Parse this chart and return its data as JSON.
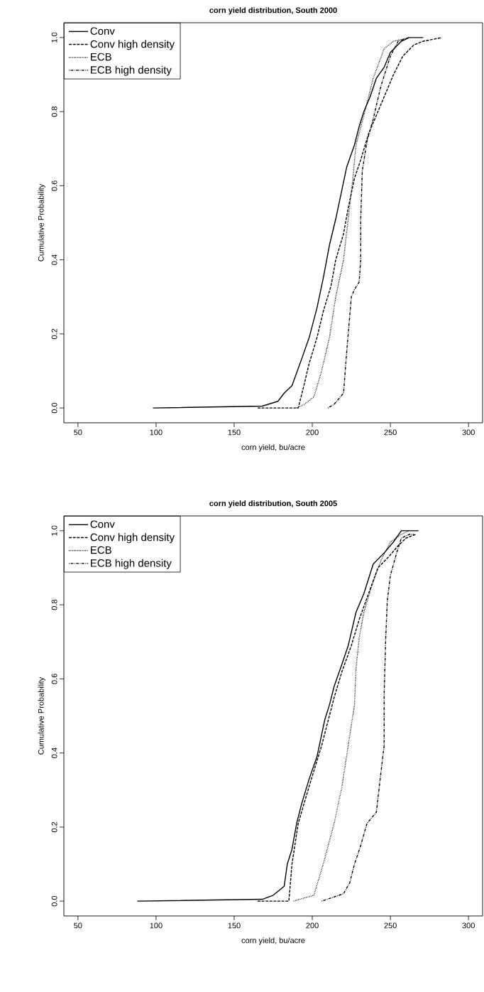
{
  "chart_data": [
    {
      "type": "line",
      "title": "corn yield distribution, South 2000",
      "xlabel": "corn yield, bu/acre",
      "ylabel": "Cumulative Probability",
      "xlim": [
        41,
        309
      ],
      "ylim": [
        -0.04,
        1.04
      ],
      "xticks": [
        50,
        100,
        150,
        200,
        250,
        300
      ],
      "yticks": [
        {
          "value": 0,
          "label": "0.0"
        },
        {
          "value": 0.2,
          "label": "0.2"
        },
        {
          "value": 0.4,
          "label": "0.4"
        },
        {
          "value": 0.6,
          "label": "0.6"
        },
        {
          "value": 0.8,
          "label": "0.8"
        },
        {
          "value": 1,
          "label": "1.0"
        }
      ],
      "legend": "top left",
      "grid": false,
      "series": [
        {
          "name": "Conv",
          "color": "#000000",
          "line_style": "solid",
          "x": [
            98,
            168,
            178,
            182,
            187,
            193,
            198,
            203,
            207,
            211,
            215,
            219,
            222,
            227,
            230,
            233,
            237,
            241,
            246,
            250,
            257,
            262,
            271
          ],
          "values": [
            0,
            0.005,
            0.018,
            0.04,
            0.06,
            0.13,
            0.19,
            0.27,
            0.35,
            0.44,
            0.51,
            0.59,
            0.65,
            0.71,
            0.76,
            0.8,
            0.84,
            0.89,
            0.92,
            0.96,
            0.99,
            1.0,
            1.0
          ]
        },
        {
          "name": "Conv high density",
          "color": "#000000",
          "line_style": "dashed",
          "x": [
            165,
            191,
            194,
            198,
            203,
            207,
            212,
            215,
            220,
            223,
            227,
            231,
            236,
            241,
            246,
            252,
            258,
            265,
            271,
            283
          ],
          "values": [
            0,
            0,
            0.05,
            0.12,
            0.19,
            0.26,
            0.33,
            0.4,
            0.47,
            0.54,
            0.62,
            0.67,
            0.74,
            0.79,
            0.84,
            0.9,
            0.95,
            0.98,
            0.99,
            1.0
          ]
        },
        {
          "name": "ECB",
          "color": "#000000",
          "line_style": "dotted",
          "x": [
            190,
            195,
            201,
            206,
            211,
            215,
            220,
            223,
            226,
            228,
            233,
            239,
            246,
            252,
            262
          ],
          "values": [
            0,
            0.01,
            0.03,
            0.1,
            0.19,
            0.3,
            0.4,
            0.51,
            0.62,
            0.71,
            0.79,
            0.89,
            0.97,
            0.99,
            1.0
          ]
        },
        {
          "name": "ECB high density",
          "color": "#000000",
          "line_style": "dashdot",
          "x": [
            210,
            214,
            220,
            222,
            225,
            227,
            230,
            231,
            231,
            232,
            235,
            239,
            244,
            250,
            255,
            262
          ],
          "values": [
            0,
            0.01,
            0.04,
            0.15,
            0.3,
            0.32,
            0.34,
            0.4,
            0.51,
            0.64,
            0.72,
            0.78,
            0.87,
            0.95,
            0.99,
            1.0
          ]
        }
      ]
    },
    {
      "type": "line",
      "title": "corn yield distribution, South 2005",
      "xlabel": "corn yield, bu/acre",
      "ylabel": "Cumulative Probability",
      "xlim": [
        41,
        309
      ],
      "ylim": [
        -0.04,
        1.04
      ],
      "xticks": [
        50,
        100,
        150,
        200,
        250,
        300
      ],
      "yticks": [
        {
          "value": 0,
          "label": "0.0"
        },
        {
          "value": 0.2,
          "label": "0.2"
        },
        {
          "value": 0.4,
          "label": "0.4"
        },
        {
          "value": 0.6,
          "label": "0.6"
        },
        {
          "value": 0.8,
          "label": "0.8"
        },
        {
          "value": 1,
          "label": "1.0"
        }
      ],
      "legend": "top left",
      "grid": false,
      "series": [
        {
          "name": "Conv",
          "color": "#000000",
          "line_style": "solid",
          "x": [
            88,
            168,
            175,
            182,
            184,
            187,
            190,
            193,
            198,
            203,
            206,
            208,
            211,
            214,
            219,
            223,
            228,
            233,
            239,
            246,
            252,
            257,
            268
          ],
          "values": [
            0,
            0.005,
            0.016,
            0.04,
            0.1,
            0.14,
            0.21,
            0.26,
            0.33,
            0.39,
            0.45,
            0.49,
            0.53,
            0.58,
            0.64,
            0.69,
            0.78,
            0.83,
            0.91,
            0.94,
            0.97,
            1.0,
            1.0
          ]
        },
        {
          "name": "Conv high density",
          "color": "#000000",
          "line_style": "dashed",
          "x": [
            165,
            185,
            187,
            191,
            198,
            206,
            214,
            219,
            225,
            230,
            236,
            242,
            249,
            255,
            260,
            266
          ],
          "values": [
            0,
            0,
            0.1,
            0.21,
            0.31,
            0.42,
            0.55,
            0.62,
            0.69,
            0.76,
            0.83,
            0.9,
            0.93,
            0.96,
            0.98,
            0.99
          ]
        },
        {
          "name": "ECB",
          "color": "#000000",
          "line_style": "dotted",
          "x": [
            188,
            201,
            207,
            214,
            219,
            223,
            227,
            228,
            230,
            233,
            238,
            244,
            250,
            257,
            262
          ],
          "values": [
            0,
            0.016,
            0.1,
            0.21,
            0.31,
            0.42,
            0.53,
            0.63,
            0.71,
            0.78,
            0.85,
            0.92,
            0.97,
            0.99,
            1.0
          ]
        },
        {
          "name": "ECB high density",
          "color": "#000000",
          "line_style": "dashdot",
          "x": [
            206,
            220,
            224,
            227,
            231,
            235,
            241,
            244,
            246,
            246,
            247,
            248,
            250,
            254,
            257,
            262,
            265
          ],
          "values": [
            0,
            0.02,
            0.05,
            0.1,
            0.15,
            0.21,
            0.24,
            0.35,
            0.42,
            0.56,
            0.71,
            0.81,
            0.88,
            0.94,
            0.98,
            0.99,
            0.99
          ]
        }
      ]
    }
  ]
}
